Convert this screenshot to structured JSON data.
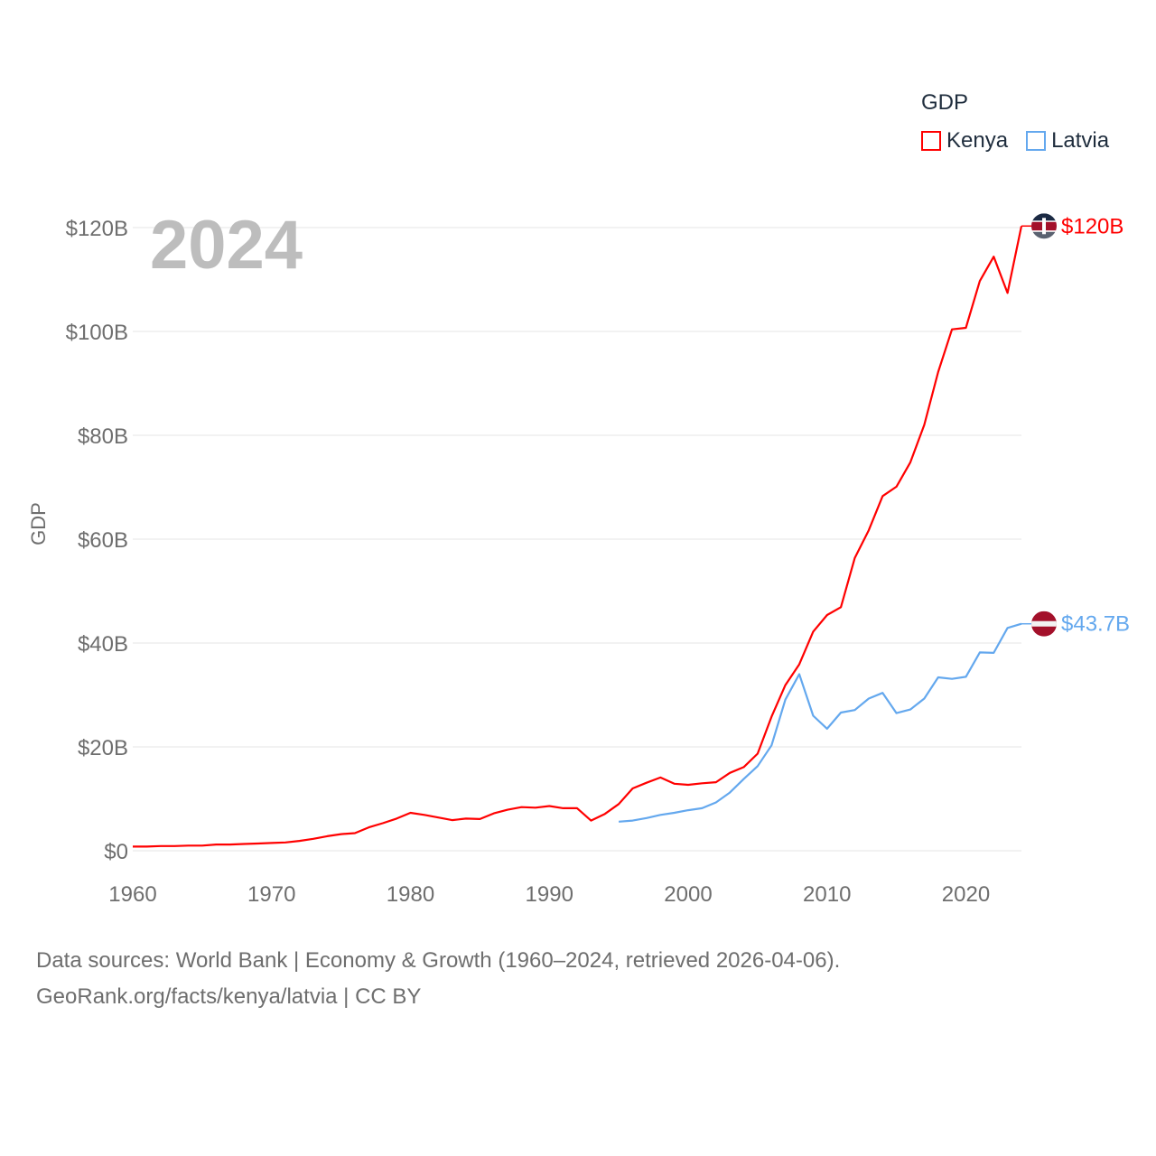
{
  "chart_data": {
    "type": "line",
    "title": "GDP",
    "ylabel": "GDP",
    "xlabel": "",
    "ylim": [
      0,
      120
    ],
    "xlim": [
      1960,
      2024
    ],
    "grid": true,
    "legend_placement": "top-right",
    "x_ticks": [
      1960,
      1970,
      1980,
      1990,
      2000,
      2010,
      2020
    ],
    "x_tick_labels": [
      "1960",
      "1970",
      "1980",
      "1990",
      "2000",
      "2010",
      "2020"
    ],
    "y_ticks": [
      0,
      20,
      40,
      60,
      80,
      100,
      120
    ],
    "y_tick_labels": [
      "$0",
      "$20B",
      "$40B",
      "$60B",
      "$80B",
      "$100B",
      "$120B"
    ],
    "series": [
      {
        "name": "Kenya",
        "color": "#ff0000",
        "end_label": "$120B",
        "x": [
          1960,
          1961,
          1962,
          1963,
          1964,
          1965,
          1966,
          1967,
          1968,
          1969,
          1970,
          1971,
          1972,
          1973,
          1974,
          1975,
          1976,
          1977,
          1978,
          1979,
          1980,
          1981,
          1982,
          1983,
          1984,
          1985,
          1986,
          1987,
          1988,
          1989,
          1990,
          1991,
          1992,
          1993,
          1994,
          1995,
          1996,
          1997,
          1998,
          1999,
          2000,
          2001,
          2002,
          2003,
          2004,
          2005,
          2006,
          2007,
          2008,
          2009,
          2010,
          2011,
          2012,
          2013,
          2014,
          2015,
          2016,
          2017,
          2018,
          2019,
          2020,
          2021,
          2022,
          2023,
          2024
        ],
        "values": [
          0.8,
          0.8,
          0.9,
          0.9,
          1.0,
          1.0,
          1.2,
          1.2,
          1.3,
          1.4,
          1.5,
          1.6,
          1.9,
          2.3,
          2.8,
          3.2,
          3.4,
          4.5,
          5.3,
          6.2,
          7.3,
          6.9,
          6.4,
          5.9,
          6.2,
          6.1,
          7.2,
          7.9,
          8.4,
          8.3,
          8.6,
          8.2,
          8.2,
          5.8,
          7.1,
          9.0,
          12.0,
          13.1,
          14.1,
          12.9,
          12.7,
          13.0,
          13.2,
          15.0,
          16.1,
          18.7,
          25.8,
          31.9,
          35.9,
          42.2,
          45.4,
          46.9,
          56.4,
          61.7,
          68.3,
          70.1,
          74.8,
          82.0,
          92.2,
          100.4,
          100.7,
          109.7,
          114.4,
          107.4,
          120.3
        ]
      },
      {
        "name": "Latvia",
        "color": "#64a8ee",
        "end_label": "$43.7B",
        "x": [
          1995,
          1996,
          1997,
          1998,
          1999,
          2000,
          2001,
          2002,
          2003,
          2004,
          2005,
          2006,
          2007,
          2008,
          2009,
          2010,
          2011,
          2012,
          2013,
          2014,
          2015,
          2016,
          2017,
          2018,
          2019,
          2020,
          2021,
          2022,
          2023,
          2024
        ],
        "values": [
          5.6,
          5.8,
          6.3,
          6.9,
          7.3,
          7.8,
          8.2,
          9.3,
          11.2,
          13.8,
          16.3,
          20.3,
          29.1,
          34.0,
          26.0,
          23.5,
          26.6,
          27.1,
          29.3,
          30.4,
          26.5,
          27.2,
          29.3,
          33.4,
          33.1,
          33.5,
          38.2,
          38.1,
          42.9,
          43.7
        ]
      }
    ],
    "annotation_year": "2024"
  },
  "legend": {
    "title": "GDP",
    "items": [
      "Kenya",
      "Latvia"
    ]
  },
  "footer": {
    "line1": "Data sources: World Bank | Economy & Growth (1960–2024, retrieved 2026-04-06).",
    "line2": "GeoRank.org/facts/kenya/latvia | CC BY"
  }
}
